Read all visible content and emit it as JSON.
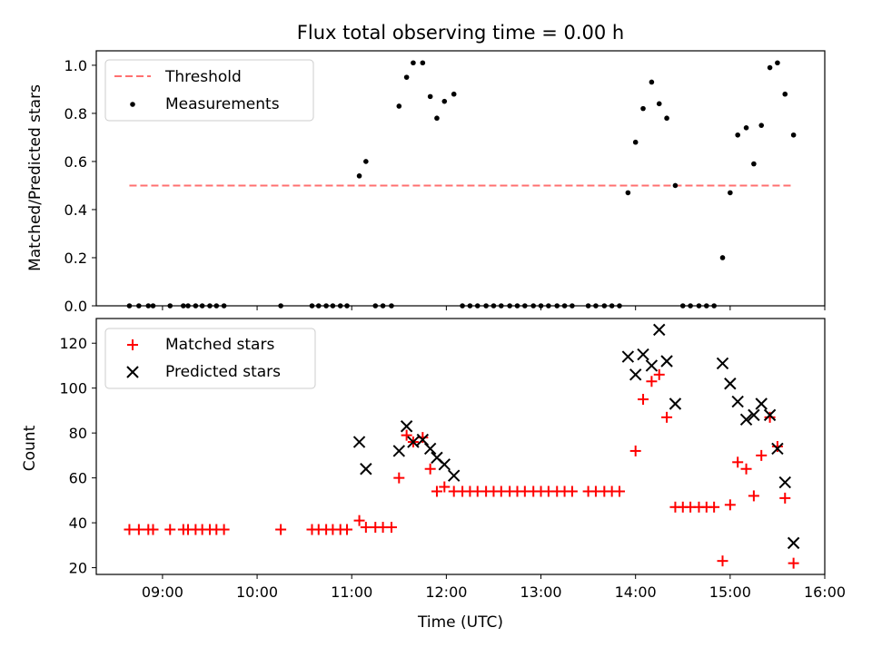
{
  "chart_data": [
    {
      "type": "scatter",
      "title": "Flux total observing time = 0.00 h",
      "xlabel": "",
      "ylabel": "Matched/Predicted stars",
      "xlim": [
        8.3,
        16.0
      ],
      "ylim": [
        0.0,
        1.06
      ],
      "yticks": [
        0.0,
        0.2,
        0.4,
        0.6,
        0.8,
        1.0
      ],
      "ytick_labels": [
        "0.0",
        "0.2",
        "0.4",
        "0.6",
        "0.8",
        "1.0"
      ],
      "legend_position": "upper-left",
      "threshold": {
        "name": "Threshold",
        "y": 0.5,
        "x_range": [
          8.65,
          15.67
        ],
        "color": "#ff7070",
        "style": "dashed"
      },
      "series": [
        {
          "name": "Measurements",
          "color": "#000000",
          "marker": "dot",
          "points": [
            [
              8.65,
              0
            ],
            [
              8.75,
              0
            ],
            [
              8.85,
              0
            ],
            [
              8.9,
              0
            ],
            [
              9.08,
              0
            ],
            [
              9.22,
              0
            ],
            [
              9.27,
              0
            ],
            [
              9.35,
              0
            ],
            [
              9.42,
              0
            ],
            [
              9.5,
              0
            ],
            [
              9.57,
              0
            ],
            [
              9.65,
              0
            ],
            [
              10.25,
              0
            ],
            [
              10.58,
              0
            ],
            [
              10.65,
              0
            ],
            [
              10.73,
              0
            ],
            [
              10.8,
              0
            ],
            [
              10.88,
              0
            ],
            [
              10.95,
              0
            ],
            [
              11.08,
              0.54
            ],
            [
              11.15,
              0.6
            ],
            [
              11.25,
              0
            ],
            [
              11.33,
              0
            ],
            [
              11.42,
              0
            ],
            [
              11.5,
              0.83
            ],
            [
              11.58,
              0.95
            ],
            [
              11.65,
              1.01
            ],
            [
              11.75,
              1.01
            ],
            [
              11.83,
              0.87
            ],
            [
              11.9,
              0.78
            ],
            [
              11.98,
              0.85
            ],
            [
              12.08,
              0.88
            ],
            [
              12.17,
              0
            ],
            [
              12.25,
              0
            ],
            [
              12.33,
              0
            ],
            [
              12.42,
              0
            ],
            [
              12.5,
              0
            ],
            [
              12.58,
              0
            ],
            [
              12.67,
              0
            ],
            [
              12.75,
              0
            ],
            [
              12.83,
              0
            ],
            [
              12.92,
              0
            ],
            [
              13.0,
              0
            ],
            [
              13.08,
              0
            ],
            [
              13.17,
              0
            ],
            [
              13.25,
              0
            ],
            [
              13.33,
              0
            ],
            [
              13.5,
              0
            ],
            [
              13.58,
              0
            ],
            [
              13.67,
              0
            ],
            [
              13.75,
              0
            ],
            [
              13.83,
              0
            ],
            [
              13.92,
              0.47
            ],
            [
              14.0,
              0.68
            ],
            [
              14.08,
              0.82
            ],
            [
              14.17,
              0.93
            ],
            [
              14.25,
              0.84
            ],
            [
              14.33,
              0.78
            ],
            [
              14.42,
              0.5
            ],
            [
              14.5,
              0
            ],
            [
              14.58,
              0
            ],
            [
              14.67,
              0
            ],
            [
              14.75,
              0
            ],
            [
              14.83,
              0
            ],
            [
              14.92,
              0.2
            ],
            [
              15.0,
              0.47
            ],
            [
              15.08,
              0.71
            ],
            [
              15.17,
              0.74
            ],
            [
              15.25,
              0.59
            ],
            [
              15.33,
              0.75
            ],
            [
              15.42,
              0.99
            ],
            [
              15.5,
              1.01
            ],
            [
              15.58,
              0.88
            ],
            [
              15.67,
              0.71
            ]
          ]
        }
      ]
    },
    {
      "type": "scatter",
      "title": "",
      "xlabel": "Time (UTC)",
      "ylabel": "Count",
      "xlim": [
        8.3,
        16.0
      ],
      "ylim": [
        17,
        131
      ],
      "xticks": [
        9,
        10,
        11,
        12,
        13,
        14,
        15,
        16
      ],
      "xtick_labels": [
        "09:00",
        "10:00",
        "11:00",
        "12:00",
        "13:00",
        "14:00",
        "15:00",
        "16:00"
      ],
      "yticks": [
        20,
        40,
        60,
        80,
        100,
        120
      ],
      "ytick_labels": [
        "20",
        "40",
        "60",
        "80",
        "100",
        "120"
      ],
      "legend_position": "upper-left",
      "series": [
        {
          "name": "Matched stars",
          "color": "#ff0000",
          "marker": "plus",
          "points": [
            [
              8.65,
              37
            ],
            [
              8.75,
              37
            ],
            [
              8.85,
              37
            ],
            [
              8.9,
              37
            ],
            [
              9.08,
              37
            ],
            [
              9.22,
              37
            ],
            [
              9.27,
              37
            ],
            [
              9.35,
              37
            ],
            [
              9.42,
              37
            ],
            [
              9.5,
              37
            ],
            [
              9.57,
              37
            ],
            [
              9.65,
              37
            ],
            [
              10.25,
              37
            ],
            [
              10.58,
              37
            ],
            [
              10.65,
              37
            ],
            [
              10.73,
              37
            ],
            [
              10.8,
              37
            ],
            [
              10.88,
              37
            ],
            [
              10.95,
              37
            ],
            [
              11.08,
              41
            ],
            [
              11.15,
              38
            ],
            [
              11.25,
              38
            ],
            [
              11.33,
              38
            ],
            [
              11.42,
              38
            ],
            [
              11.5,
              60
            ],
            [
              11.58,
              79
            ],
            [
              11.65,
              76
            ],
            [
              11.75,
              78
            ],
            [
              11.83,
              64
            ],
            [
              11.9,
              54
            ],
            [
              11.98,
              56
            ],
            [
              12.08,
              54
            ],
            [
              12.17,
              54
            ],
            [
              12.25,
              54
            ],
            [
              12.33,
              54
            ],
            [
              12.42,
              54
            ],
            [
              12.5,
              54
            ],
            [
              12.58,
              54
            ],
            [
              12.67,
              54
            ],
            [
              12.75,
              54
            ],
            [
              12.83,
              54
            ],
            [
              12.92,
              54
            ],
            [
              13.0,
              54
            ],
            [
              13.08,
              54
            ],
            [
              13.17,
              54
            ],
            [
              13.25,
              54
            ],
            [
              13.33,
              54
            ],
            [
              13.5,
              54
            ],
            [
              13.58,
              54
            ],
            [
              13.67,
              54
            ],
            [
              13.75,
              54
            ],
            [
              13.83,
              54
            ],
            [
              14.0,
              72
            ],
            [
              14.08,
              95
            ],
            [
              14.17,
              103
            ],
            [
              14.25,
              106
            ],
            [
              14.33,
              87
            ],
            [
              14.42,
              47
            ],
            [
              14.5,
              47
            ],
            [
              14.58,
              47
            ],
            [
              14.67,
              47
            ],
            [
              14.75,
              47
            ],
            [
              14.83,
              47
            ],
            [
              14.92,
              23
            ],
            [
              15.0,
              48
            ],
            [
              15.08,
              67
            ],
            [
              15.17,
              64
            ],
            [
              15.25,
              52
            ],
            [
              15.33,
              70
            ],
            [
              15.42,
              87
            ],
            [
              15.5,
              74
            ],
            [
              15.58,
              51
            ],
            [
              15.67,
              22
            ]
          ]
        },
        {
          "name": "Predicted stars",
          "color": "#000000",
          "marker": "x",
          "points": [
            [
              11.08,
              76
            ],
            [
              11.15,
              64
            ],
            [
              11.5,
              72
            ],
            [
              11.58,
              83
            ],
            [
              11.65,
              76
            ],
            [
              11.75,
              77
            ],
            [
              11.83,
              73
            ],
            [
              11.9,
              69
            ],
            [
              11.98,
              66
            ],
            [
              12.08,
              61
            ],
            [
              13.92,
              114
            ],
            [
              14.0,
              106
            ],
            [
              14.08,
              115
            ],
            [
              14.17,
              110
            ],
            [
              14.25,
              126
            ],
            [
              14.33,
              112
            ],
            [
              14.42,
              93
            ],
            [
              14.92,
              111
            ],
            [
              15.0,
              102
            ],
            [
              15.08,
              94
            ],
            [
              15.17,
              86
            ],
            [
              15.25,
              88
            ],
            [
              15.33,
              93
            ],
            [
              15.42,
              88
            ],
            [
              15.5,
              73
            ],
            [
              15.58,
              58
            ],
            [
              15.67,
              31
            ]
          ]
        }
      ]
    }
  ]
}
